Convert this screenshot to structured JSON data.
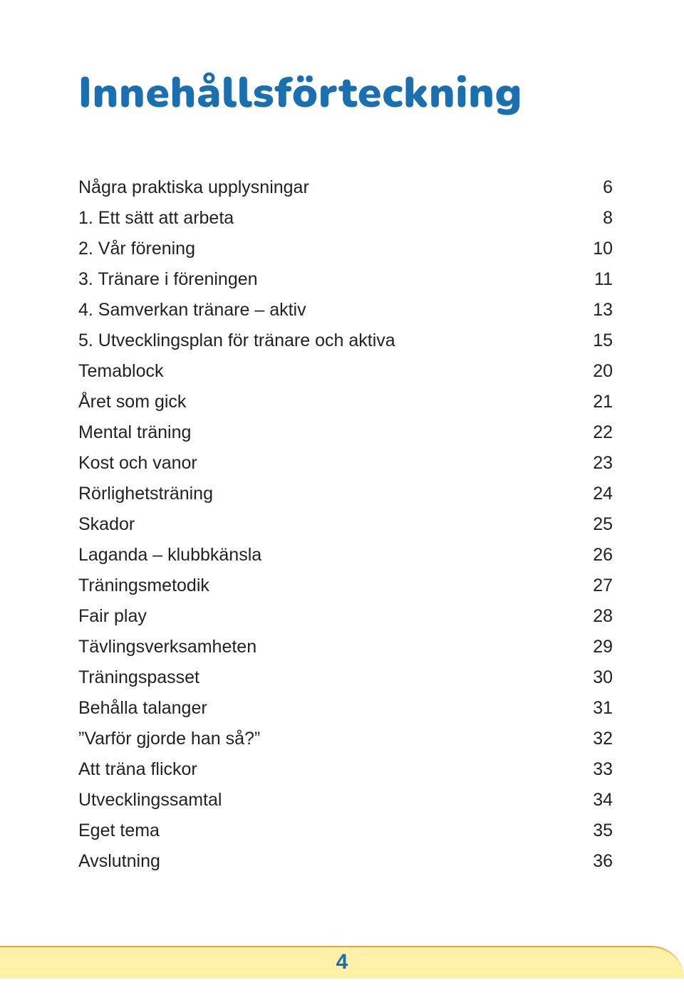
{
  "title": "Innehållsförteckning",
  "title_color": "#1a6fb0",
  "title_fontsize": 60,
  "body_fontsize": 25,
  "body_color": "#222222",
  "footer_bar_color": "#fff2a8",
  "footer_border_color": "#f2a33c",
  "page_number": "4",
  "toc": [
    {
      "label": "Några praktiska upplysningar",
      "page": "6"
    },
    {
      "label": "1. Ett sätt att arbeta",
      "page": "8"
    },
    {
      "label": "2. Vår förening",
      "page": "10"
    },
    {
      "label": "3. Tränare i föreningen",
      "page": "11"
    },
    {
      "label": "4. Samverkan tränare – aktiv",
      "page": "13"
    },
    {
      "label": "5. Utvecklingsplan för tränare och aktiva",
      "page": "15"
    },
    {
      "label": "Temablock",
      "page": "20"
    },
    {
      "label": "Året som gick",
      "page": "21"
    },
    {
      "label": "Mental träning",
      "page": "22"
    },
    {
      "label": "Kost och vanor",
      "page": "23"
    },
    {
      "label": "Rörlighetsträning",
      "page": "24"
    },
    {
      "label": "Skador",
      "page": "25"
    },
    {
      "label": "Laganda – klubbkänsla",
      "page": "26"
    },
    {
      "label": "Träningsmetodik",
      "page": "27"
    },
    {
      "label": "Fair play",
      "page": "28"
    },
    {
      "label": "Tävlingsverksamheten",
      "page": "29"
    },
    {
      "label": "Träningspasset",
      "page": "30"
    },
    {
      "label": "Behålla talanger",
      "page": "31"
    },
    {
      "label": "”Varför gjorde han så?”",
      "page": "32"
    },
    {
      "label": "Att träna flickor",
      "page": "33"
    },
    {
      "label": "Utvecklingssamtal",
      "page": "34"
    },
    {
      "label": "Eget tema",
      "page": "35"
    },
    {
      "label": "Avslutning",
      "page": "36"
    }
  ]
}
